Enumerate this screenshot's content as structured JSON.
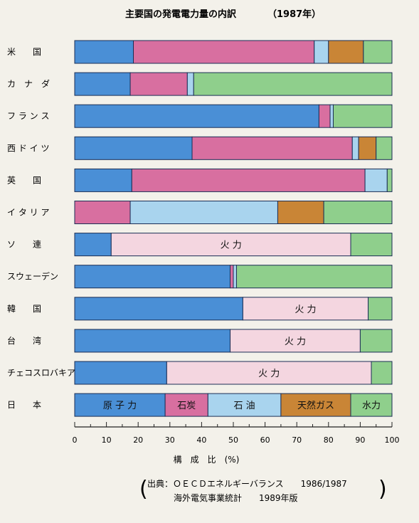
{
  "chart_data": {
    "type": "bar",
    "orientation": "horizontal",
    "stacked": true,
    "title": "主要国の発電電力量の内訳",
    "subtitle": "（1987年）",
    "xlabel": "構　成　比　(%)",
    "xlim": [
      0,
      100
    ],
    "xticks": [
      "0",
      "10",
      "20",
      "30",
      "40",
      "50",
      "60",
      "70",
      "80",
      "90",
      "100"
    ],
    "categories": [
      "米　　国",
      "カ　ナ　ダ",
      "フ ラ ン ス",
      "西 ド イ ツ",
      "英　　国",
      "イ タ リ ア",
      "ソ　　連",
      "スウェーデン",
      "韓　　国",
      "台　　湾",
      "チェコスロバキア",
      "日　　本"
    ],
    "series_keys": [
      "原子力",
      "石炭",
      "石油",
      "天然ガス",
      "水力"
    ],
    "colors": {
      "原子力": "#4a8fd6",
      "石炭": "#d86fa0",
      "石油": "#a9d4ee",
      "天然ガス": "#c98536",
      "水力": "#8fcf8c",
      "火力": "#f4d6e0"
    },
    "rows": [
      {
        "segments": [
          {
            "key": "原子力",
            "value": 18.5
          },
          {
            "key": "石炭",
            "value": 57
          },
          {
            "key": "石油",
            "value": 4.5
          },
          {
            "key": "天然ガス",
            "value": 11
          },
          {
            "key": "水力",
            "value": 9
          }
        ]
      },
      {
        "segments": [
          {
            "key": "原子力",
            "value": 17.5
          },
          {
            "key": "石炭",
            "value": 18
          },
          {
            "key": "石油",
            "value": 2
          },
          {
            "key": "水力",
            "value": 62.5
          }
        ]
      },
      {
        "segments": [
          {
            "key": "原子力",
            "value": 77
          },
          {
            "key": "石炭",
            "value": 3.5
          },
          {
            "key": "石油",
            "value": 1
          },
          {
            "key": "水力",
            "value": 18.5
          }
        ]
      },
      {
        "segments": [
          {
            "key": "原子力",
            "value": 37
          },
          {
            "key": "石炭",
            "value": 50.5
          },
          {
            "key": "石油",
            "value": 2
          },
          {
            "key": "天然ガス",
            "value": 5.5
          },
          {
            "key": "水力",
            "value": 5
          }
        ]
      },
      {
        "segments": [
          {
            "key": "原子力",
            "value": 18
          },
          {
            "key": "石炭",
            "value": 73.5
          },
          {
            "key": "石油",
            "value": 7
          },
          {
            "key": "水力",
            "value": 1.5
          }
        ]
      },
      {
        "segments": [
          {
            "key": "石炭",
            "value": 17.5
          },
          {
            "key": "石油",
            "value": 46.5
          },
          {
            "key": "天然ガス",
            "value": 14.5
          },
          {
            "key": "水力",
            "value": 21.5
          }
        ]
      },
      {
        "segments": [
          {
            "key": "原子力",
            "value": 11.5
          },
          {
            "key": "火力",
            "value": 75.5,
            "label": "火 力"
          },
          {
            "key": "水力",
            "value": 13
          }
        ]
      },
      {
        "segments": [
          {
            "key": "原子力",
            "value": 49
          },
          {
            "key": "石炭",
            "value": 1
          },
          {
            "key": "石油",
            "value": 1
          },
          {
            "key": "水力",
            "value": 49
          }
        ]
      },
      {
        "segments": [
          {
            "key": "原子力",
            "value": 53
          },
          {
            "key": "火力",
            "value": 39.5,
            "label": "火 力"
          },
          {
            "key": "水力",
            "value": 7.5
          }
        ]
      },
      {
        "segments": [
          {
            "key": "原子力",
            "value": 49
          },
          {
            "key": "火力",
            "value": 41,
            "label": "火 力"
          },
          {
            "key": "水力",
            "value": 10
          }
        ]
      },
      {
        "segments": [
          {
            "key": "原子力",
            "value": 29
          },
          {
            "key": "火力",
            "value": 64.5,
            "label": "火 力"
          },
          {
            "key": "水力",
            "value": 6.5
          }
        ]
      },
      {
        "segments": [
          {
            "key": "原子力",
            "value": 28.5,
            "label": "原 子 力"
          },
          {
            "key": "石炭",
            "value": 13.5,
            "label": "石炭"
          },
          {
            "key": "石油",
            "value": 23,
            "label": "石 油"
          },
          {
            "key": "天然ガス",
            "value": 22,
            "label": "天然ガス"
          },
          {
            "key": "水力",
            "value": 13,
            "label": "水力"
          }
        ]
      }
    ]
  },
  "source": {
    "line1": "出典：ＯＥＣＤエネルギーバランス　　1986/1987",
    "line2": "海外電気事業統計　　1989年版"
  }
}
